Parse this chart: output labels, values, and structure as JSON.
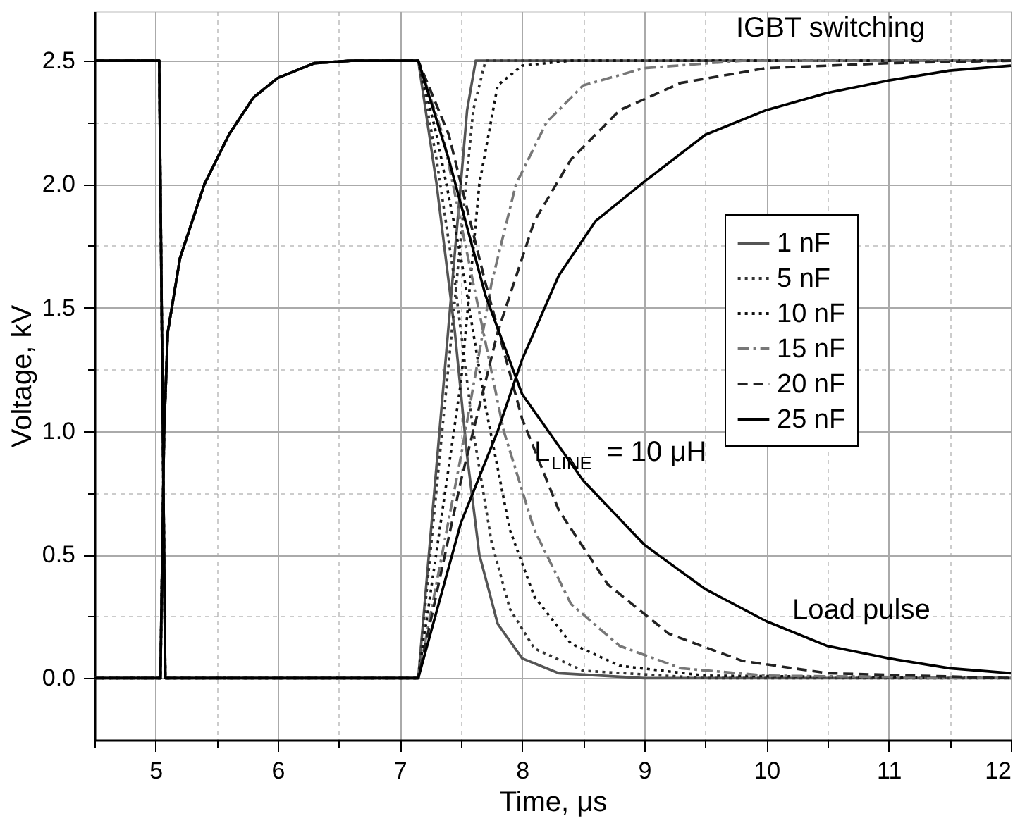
{
  "chart_data": {
    "type": "line",
    "xlabel": "Time, μs",
    "ylabel": "Voltage, kV",
    "xlim": [
      4.5,
      12
    ],
    "ylim": [
      -0.25,
      2.7
    ],
    "xticks": [
      {
        "value": 4.5,
        "label": null
      },
      5,
      {
        "value": 5.5,
        "label": null
      },
      6,
      {
        "value": 6.5,
        "label": null
      },
      7,
      {
        "value": 7.5,
        "label": null
      },
      8,
      {
        "value": 8.5,
        "label": null
      },
      9,
      {
        "value": 9.5,
        "label": null
      },
      10,
      {
        "value": 10.5,
        "label": null
      },
      11,
      {
        "value": 11.5,
        "label": null
      },
      12
    ],
    "yticks": [
      {
        "value": 0,
        "label": "0.0"
      },
      {
        "value": 0.25,
        "label": null
      },
      0.5,
      {
        "value": 0.75,
        "label": null
      },
      {
        "value": 1,
        "label": "1.0"
      },
      {
        "value": 1.25,
        "label": null
      },
      1.5,
      {
        "value": 1.75,
        "label": null
      },
      {
        "value": 2,
        "label": "2.0"
      },
      {
        "value": 2.25,
        "label": null
      },
      2.5
    ],
    "grid": true,
    "legend": "right",
    "marker": "none",
    "annotations": [
      "IGBT switching",
      "Load pulse",
      "L$_{LINE}$ = 10 μH"
    ],
    "series": [
      {
        "name": "1 nF",
        "color": "#555555",
        "line_style": "solid",
        "x": [
          4.5,
          5.03,
          5.08,
          7.15,
          7.55,
          7.62,
          12,
          null,
          4.5,
          5.04,
          5.07,
          5.1,
          5.2,
          5.4,
          5.6,
          5.8,
          6.0,
          6.3,
          6.6,
          7.15,
          7.3,
          7.45,
          7.55,
          7.65,
          7.8,
          8.0,
          8.3,
          9,
          12
        ],
        "values": [
          2.5,
          2.5,
          0,
          0,
          2.3,
          2.5,
          2.5,
          null,
          0,
          0,
          1.0,
          1.4,
          1.7,
          2.0,
          2.2,
          2.35,
          2.43,
          2.49,
          2.5,
          2.5,
          2.0,
          1.4,
          0.9,
          0.5,
          0.22,
          0.08,
          0.02,
          0,
          0
        ]
      },
      {
        "name": "5 nF",
        "color": "#333333",
        "line_style": "dotted",
        "x": [
          4.5,
          5.03,
          5.08,
          7.15,
          7.6,
          7.7,
          12,
          null,
          4.5,
          5.04,
          5.07,
          5.1,
          5.2,
          5.4,
          5.6,
          5.8,
          6.0,
          6.3,
          6.6,
          7.15,
          7.3,
          7.45,
          7.6,
          7.75,
          7.9,
          8.1,
          8.5,
          9.5,
          12
        ],
        "values": [
          2.5,
          2.5,
          0,
          0,
          2.3,
          2.5,
          2.5,
          null,
          0,
          0,
          1.0,
          1.4,
          1.7,
          2.0,
          2.2,
          2.35,
          2.43,
          2.49,
          2.5,
          2.5,
          2.1,
          1.6,
          1.0,
          0.55,
          0.28,
          0.12,
          0.03,
          0,
          0
        ]
      },
      {
        "name": "10 nF",
        "color": "#111111",
        "line_style": "dotted",
        "x": [
          4.5,
          5.03,
          5.08,
          7.15,
          7.5,
          7.65,
          7.8,
          8.0,
          8.4,
          12,
          null,
          4.5,
          5.04,
          5.07,
          5.1,
          5.2,
          5.4,
          5.6,
          5.8,
          6.0,
          6.3,
          6.6,
          7.15,
          7.3,
          7.5,
          7.7,
          7.9,
          8.1,
          8.4,
          8.8,
          9.5,
          12
        ],
        "values": [
          2.5,
          2.5,
          0,
          0,
          1.2,
          2.0,
          2.4,
          2.48,
          2.5,
          2.5,
          null,
          0,
          0,
          1.0,
          1.4,
          1.7,
          2.0,
          2.2,
          2.35,
          2.43,
          2.49,
          2.5,
          2.5,
          2.2,
          1.7,
          1.1,
          0.6,
          0.33,
          0.14,
          0.05,
          0.01,
          0
        ]
      },
      {
        "name": "15 nF",
        "color": "#777777",
        "line_style": "dashdot",
        "x": [
          4.5,
          5.03,
          5.08,
          7.15,
          7.5,
          7.75,
          7.95,
          8.2,
          8.5,
          9.0,
          9.8,
          12,
          null,
          4.5,
          5.04,
          5.07,
          5.1,
          5.2,
          5.4,
          5.6,
          5.8,
          6.0,
          6.3,
          6.6,
          7.15,
          7.35,
          7.6,
          7.85,
          8.1,
          8.4,
          8.8,
          9.3,
          10,
          12
        ],
        "values": [
          2.5,
          2.5,
          0,
          0,
          0.9,
          1.6,
          2.0,
          2.25,
          2.4,
          2.47,
          2.5,
          2.5,
          null,
          0,
          0,
          1.0,
          1.4,
          1.7,
          2.0,
          2.2,
          2.35,
          2.43,
          2.49,
          2.5,
          2.5,
          2.2,
          1.6,
          1.0,
          0.6,
          0.3,
          0.13,
          0.04,
          0.01,
          0
        ]
      },
      {
        "name": "20 nF",
        "color": "#222222",
        "line_style": "dashed",
        "x": [
          4.5,
          5.03,
          5.08,
          7.15,
          7.5,
          7.8,
          8.1,
          8.4,
          8.8,
          9.3,
          10,
          11,
          12,
          null,
          4.5,
          5.04,
          5.07,
          5.1,
          5.2,
          5.4,
          5.6,
          5.8,
          6.0,
          6.3,
          6.6,
          7.15,
          7.4,
          7.7,
          8.0,
          8.3,
          8.7,
          9.2,
          9.8,
          10.5,
          12
        ],
        "values": [
          2.5,
          2.5,
          0,
          0,
          0.8,
          1.4,
          1.85,
          2.1,
          2.3,
          2.41,
          2.47,
          2.49,
          2.5,
          null,
          0,
          0,
          1.0,
          1.4,
          1.7,
          2.0,
          2.2,
          2.35,
          2.43,
          2.49,
          2.5,
          2.5,
          2.2,
          1.6,
          1.05,
          0.68,
          0.38,
          0.18,
          0.07,
          0.02,
          0
        ]
      },
      {
        "name": "25 nF",
        "color": "#000000",
        "line_style": "solid",
        "x": [
          4.5,
          5.03,
          5.08,
          7.15,
          7.5,
          7.8,
          8.0,
          8.3,
          8.6,
          9.0,
          9.5,
          10,
          10.5,
          11,
          11.5,
          12,
          null,
          4.5,
          5.04,
          5.07,
          5.1,
          5.2,
          5.4,
          5.6,
          5.8,
          6.0,
          6.3,
          6.6,
          7.15,
          7.4,
          7.7,
          8.0,
          8.5,
          9.0,
          9.5,
          10.0,
          10.5,
          11.0,
          11.5,
          12
        ],
        "values": [
          2.5,
          2.5,
          0,
          0,
          0.63,
          1.0,
          1.29,
          1.63,
          1.85,
          2.01,
          2.2,
          2.3,
          2.37,
          2.42,
          2.46,
          2.48,
          null,
          0,
          0,
          1.0,
          1.4,
          1.7,
          2.0,
          2.2,
          2.35,
          2.43,
          2.49,
          2.5,
          2.5,
          2.1,
          1.55,
          1.15,
          0.8,
          0.54,
          0.36,
          0.23,
          0.13,
          0.08,
          0.04,
          0.02
        ]
      }
    ]
  }
}
